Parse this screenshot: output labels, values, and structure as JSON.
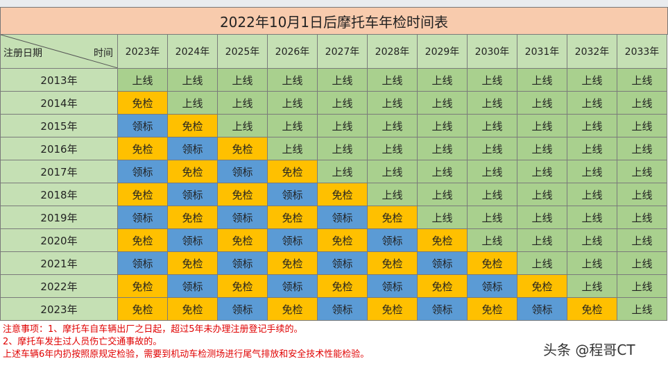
{
  "title": "2022年10月1日后摩托车年检时间表",
  "header": {
    "corner_left": "注册日期",
    "corner_right": "时间",
    "years": [
      "2023年",
      "2024年",
      "2025年",
      "2026年",
      "2027年",
      "2028年",
      "2029年",
      "2030年",
      "2031年",
      "2032年",
      "2033年"
    ]
  },
  "legend_colors": {
    "上线": "#a9d08e",
    "免检": "#ffc000",
    "领标": "#5b9bd5",
    "header_bg": "#c5e0b4",
    "title_bg": "#f8cbad",
    "notes_text": "#e00000"
  },
  "rows": [
    {
      "label": "2013年",
      "cells": [
        "上线",
        "上线",
        "上线",
        "上线",
        "上线",
        "上线",
        "上线",
        "上线",
        "上线",
        "上线",
        "上线"
      ]
    },
    {
      "label": "2014年",
      "cells": [
        "免检",
        "上线",
        "上线",
        "上线",
        "上线",
        "上线",
        "上线",
        "上线",
        "上线",
        "上线",
        "上线"
      ]
    },
    {
      "label": "2015年",
      "cells": [
        "领标",
        "免检",
        "上线",
        "上线",
        "上线",
        "上线",
        "上线",
        "上线",
        "上线",
        "上线",
        "上线"
      ]
    },
    {
      "label": "2016年",
      "cells": [
        "免检",
        "领标",
        "免检",
        "上线",
        "上线",
        "上线",
        "上线",
        "上线",
        "上线",
        "上线",
        "上线"
      ]
    },
    {
      "label": "2017年",
      "cells": [
        "领标",
        "免检",
        "领标",
        "免检",
        "上线",
        "上线",
        "上线",
        "上线",
        "上线",
        "上线",
        "上线"
      ]
    },
    {
      "label": "2018年",
      "cells": [
        "免检",
        "领标",
        "免检",
        "领标",
        "免检",
        "上线",
        "上线",
        "上线",
        "上线",
        "上线",
        "上线"
      ]
    },
    {
      "label": "2019年",
      "cells": [
        "领标",
        "免检",
        "领标",
        "免检",
        "领标",
        "免检",
        "上线",
        "上线",
        "上线",
        "上线",
        "上线"
      ]
    },
    {
      "label": "2020年",
      "cells": [
        "免检",
        "领标",
        "免检",
        "领标",
        "免检",
        "领标",
        "免检",
        "上线",
        "上线",
        "上线",
        "上线"
      ]
    },
    {
      "label": "2021年",
      "cells": [
        "领标",
        "免检",
        "领标",
        "免检",
        "领标",
        "免检",
        "领标",
        "免检",
        "上线",
        "上线",
        "上线"
      ]
    },
    {
      "label": "2022年",
      "cells": [
        "免检",
        "领标",
        "免检",
        "领标",
        "免检",
        "领标",
        "免检",
        "领标",
        "免检",
        "上线",
        "上线"
      ]
    },
    {
      "label": "2023年",
      "cells": [
        "免检",
        "免检",
        "领标",
        "免检",
        "领标",
        "免检",
        "领标",
        "免检",
        "领标",
        "免检",
        "上线"
      ]
    }
  ],
  "notes": [
    "注意事项：1、摩托车自车辆出厂之日起，超过5年未办理注册登记手续的。",
    "2、摩托车发生过人员伤亡交通事故的。",
    "上述车辆6年内扔按照原规定检验，需要到机动车检测场进行尾气排放和安全技术性能检验。"
  ],
  "watermark": "头条 @程哥CT"
}
